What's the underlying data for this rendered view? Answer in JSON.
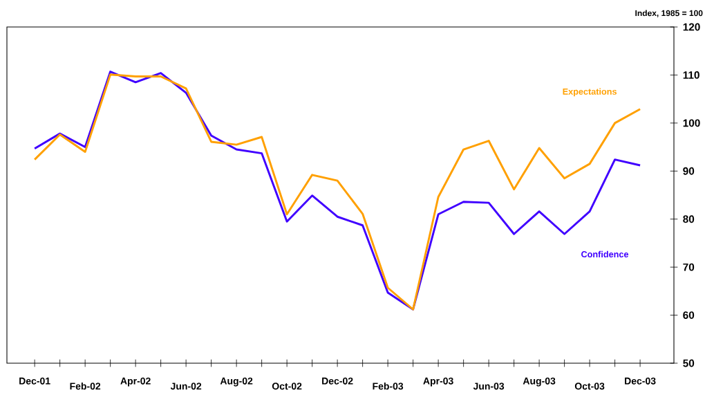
{
  "chart_data": {
    "type": "line",
    "ylabel": "Index, 1985 = 100",
    "categories": [
      "Dec-01",
      null,
      "Feb-02",
      null,
      "Apr-02",
      null,
      "Jun-02",
      null,
      "Aug-02",
      null,
      "Oct-02",
      null,
      "Dec-02",
      null,
      "Feb-03",
      null,
      "Apr-03",
      null,
      "Jun-03",
      null,
      "Aug-03",
      null,
      "Oct-03",
      null,
      "Dec-03"
    ],
    "series": [
      {
        "name": "Confidence",
        "color": "#4000ff",
        "values": [
          94.7,
          97.8,
          95.0,
          110.7,
          108.5,
          110.4,
          106.3,
          97.4,
          94.5,
          93.7,
          79.5,
          84.9,
          80.5,
          78.7,
          64.7,
          61.2,
          81.0,
          83.6,
          83.4,
          76.9,
          81.6,
          76.9,
          81.6,
          92.4,
          91.2
        ]
      },
      {
        "name": "Expectations",
        "color": "#ffa000",
        "values": [
          92.4,
          97.6,
          94.0,
          110.1,
          109.7,
          109.7,
          107.2,
          96.1,
          95.5,
          97.1,
          81.0,
          89.2,
          88.0,
          81.1,
          65.7,
          61.2,
          84.6,
          94.5,
          96.3,
          86.2,
          94.8,
          88.5,
          91.5,
          100.0,
          102.9
        ]
      }
    ],
    "ylim": [
      50,
      120
    ],
    "yticks": [
      50,
      60,
      70,
      80,
      90,
      100,
      110,
      120
    ],
    "legend": false,
    "grid": false,
    "marker": "none",
    "line_style": "solid"
  }
}
